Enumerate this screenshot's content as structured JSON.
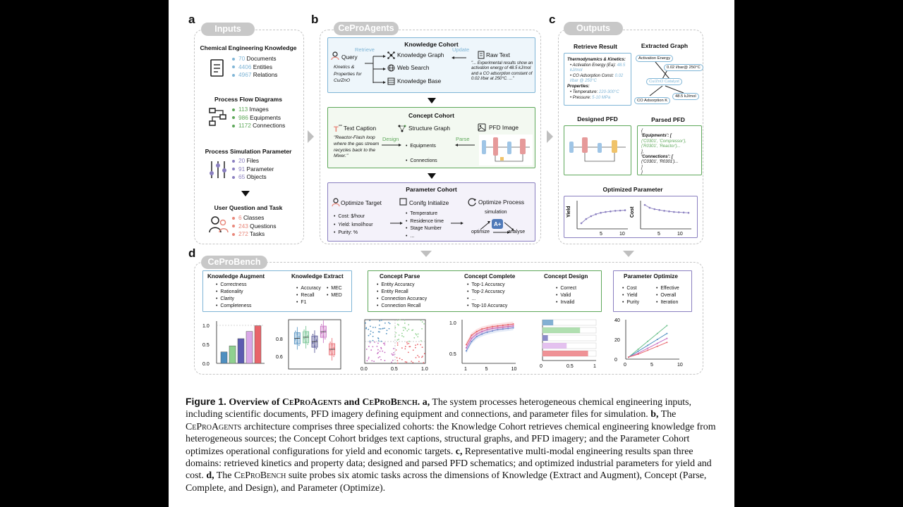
{
  "panel_letters": {
    "a": "a",
    "b": "b",
    "c": "c",
    "d": "d"
  },
  "pills": {
    "inputs": "Inputs",
    "ceproagents": "CeProAgents",
    "outputs": "Outputs",
    "ceprobench": "CeProBench"
  },
  "inputs": {
    "knowledge": {
      "title": "Chemical Engineering Knowledge",
      "lines": [
        {
          "num": "70",
          "text": "Documents"
        },
        {
          "num": "4406",
          "text": "Entities"
        },
        {
          "num": "4967",
          "text": "Relations"
        }
      ]
    },
    "pfd": {
      "title": "Process Flow Diagrams",
      "lines": [
        {
          "num": "113",
          "text": "Images"
        },
        {
          "num": "986",
          "text": "Equipments"
        },
        {
          "num": "1172",
          "text": "Connections"
        }
      ]
    },
    "sim": {
      "title": "Process Simulation Parameter",
      "lines": [
        {
          "num": "20",
          "text": "Files"
        },
        {
          "num": "91",
          "text": "Parameter"
        },
        {
          "num": "65",
          "text": "Objects"
        }
      ]
    },
    "user": {
      "title": "User Question and Task",
      "lines": [
        {
          "num": "6",
          "text": "Classes"
        },
        {
          "num": "243",
          "text": "Questions"
        },
        {
          "num": "272",
          "text": "Tasks"
        }
      ]
    }
  },
  "colors": {
    "blue": "#7fb5d6",
    "green": "#5ea85a",
    "purple": "#8a7fc0",
    "red": "#e8877a",
    "kc_border": "#7fb5d6",
    "kc_bg": "#eef6fb",
    "cc_border": "#5ea85a",
    "cc_bg": "#f3f9f1",
    "pc_border": "#8a7fc0",
    "pc_bg": "#f4f2fa"
  },
  "knowledge_cohort": {
    "title": "Knowledge Cohort",
    "query": "Query",
    "retrieve": "Retrieve",
    "update": "Update",
    "query_desc": "Kinetics & Properties for Cu/ZnO",
    "sources": [
      "Knowledge Graph",
      "Web Search",
      "Knowledge Base"
    ],
    "raw_text": "Raw Text",
    "raw_quote": "\"... Experimental results show an activation energy of 48.5 kJ/mol and a CO adsorption constant of 0.02 l/bar at 250°C. ...\""
  },
  "concept_cohort": {
    "title": "Concept Cohort",
    "text_caption": "Text Caption",
    "structure_graph": "Structure Graph",
    "pfd_image": "PFD Image",
    "caption_quote": "\"Reactor-Flash loop where the gas stream recycles back to the Mixer.\"",
    "design": "Design",
    "parse": "Parse",
    "items": [
      "Equipments",
      "Connections"
    ]
  },
  "parameter_cohort": {
    "title": "Parameter Cohort",
    "optimize_target": "Optimize Target",
    "config_init": "Conifg Initialize",
    "optimize_process": "Optimize Process",
    "targets": [
      "Cost: $/hour",
      "Yield: kmol/hour",
      "Purity: %"
    ],
    "params": [
      "Temperature",
      "Residence time",
      "Stage Number",
      "..."
    ],
    "simulation": "simulation",
    "optimize": "optimize",
    "analyse": "analyse"
  },
  "outputs": {
    "retrieve_title": "Retrieve Result",
    "thermo_title": "Thermodynamics & Kinetics:",
    "thermo_items": [
      {
        "k": "Activation Energy (Ea):",
        "v": "48.5 kJ/mol"
      },
      {
        "k": "CO Adsorption Const:",
        "v": "0.02 l/bar @ 250°C"
      }
    ],
    "prop_title": "Properties:",
    "prop_items": [
      {
        "k": "Temperature:",
        "v": "220-300°C"
      },
      {
        "k": "Pressure:",
        "v": "5-10 MPa"
      }
    ],
    "graph_title": "Extracted Graph",
    "graph_nodes": {
      "a": "Activation Energy",
      "b": "0.02 l/bar@ 250°C",
      "c": "Cu/ZnO Catalyst",
      "d": "48.5 kJ/mol",
      "e": "CO Adsorption K"
    },
    "designed_pfd": "Designed PFD",
    "parsed_pfd": "Parsed PFD",
    "parsed_lines": [
      "{",
      "'Equipments': [",
      "('C0301', 'Compressor'),",
      "('R0301', 'Reactor')...",
      "],",
      "'Connections': [",
      "('C0301', 'R0301')...",
      "]",
      "}"
    ],
    "opt_title": "Optimized Parameter",
    "yield_label": "Yield",
    "cost_label": "Cost",
    "ticks": [
      "5",
      "10"
    ]
  },
  "bench": {
    "knowledge_augment": {
      "title": "Knowledge Augment",
      "items": [
        "Correctness",
        "Rationality",
        "Clarity",
        "Completeness"
      ]
    },
    "knowledge_extract": {
      "title": "Knowledge Extract",
      "items_a": [
        "Accuracy",
        "Recall",
        "F1"
      ],
      "items_b": [
        "MEC",
        "MED"
      ]
    },
    "concept_parse": {
      "title": "Concept Parse",
      "items": [
        "Entity Accuracy",
        "Entity Recall",
        "Connection Accuracy",
        "Connection Recall"
      ]
    },
    "concept_complete": {
      "title": "Concept Complete",
      "items": [
        "Top-1 Accuracy",
        "Top-2 Accuracy",
        "...",
        "Top-10 Accuracy"
      ]
    },
    "concept_design": {
      "title": "Concept Design",
      "items": [
        "Correct",
        "Valid",
        "Invalid"
      ]
    },
    "param_optimize": {
      "title": "Parameter Optimize",
      "items_a": [
        "Cost",
        "Yield",
        "Purity"
      ],
      "items_b": [
        "Effective",
        "Overall",
        "Iteration"
      ]
    }
  },
  "chart_data": [
    {
      "type": "bar",
      "categories": [
        "1",
        "2",
        "3",
        "4",
        "5"
      ],
      "values": [
        0.3,
        0.46,
        0.65,
        0.84,
        0.99
      ],
      "yticks": [
        "0.0",
        "0.5",
        "1.0"
      ],
      "ylim": [
        0,
        1
      ]
    },
    {
      "type": "box",
      "series": [
        {
          "median": 0.83
        },
        {
          "median": 0.84
        },
        {
          "median": 0.8
        },
        {
          "median": 0.89
        },
        {
          "median": 0.73
        }
      ],
      "yticks": [
        "0.6",
        "0.8"
      ],
      "ylim": [
        0.55,
        1.0
      ]
    },
    {
      "type": "scatter",
      "xticks": [
        "0.0",
        "0.5",
        "1.0"
      ],
      "xlim": [
        0,
        1
      ]
    },
    {
      "type": "line",
      "x": [
        1,
        2,
        3,
        4,
        5,
        6,
        7,
        8,
        9,
        10
      ],
      "series": [
        {
          "values": [
            0.55,
            0.7,
            0.78,
            0.82,
            0.85,
            0.87,
            0.89,
            0.9,
            0.91,
            0.92
          ]
        },
        {
          "values": [
            0.6,
            0.75,
            0.82,
            0.86,
            0.89,
            0.91,
            0.92,
            0.93,
            0.94,
            0.95
          ]
        },
        {
          "values": [
            0.65,
            0.8,
            0.86,
            0.9,
            0.92,
            0.94,
            0.95,
            0.96,
            0.97,
            0.98
          ]
        }
      ],
      "yticks": [
        "0.5",
        "1.0"
      ],
      "xticks": [
        "1",
        "5",
        "10"
      ]
    },
    {
      "type": "bar",
      "orientation": "horizontal",
      "values": [
        0.2,
        0.7,
        0.1,
        0.45,
        0.85
      ],
      "xticks": [
        "0",
        "0.5",
        "1"
      ]
    },
    {
      "type": "line",
      "x": [
        0,
        2,
        4,
        6,
        8
      ],
      "series": [
        {
          "values": [
            2,
            10,
            18,
            26,
            34
          ]
        },
        {
          "values": [
            2,
            8,
            14,
            20,
            26
          ]
        },
        {
          "values": [
            2,
            6,
            11,
            16,
            21
          ]
        },
        {
          "values": [
            2,
            5,
            9,
            13,
            17
          ]
        }
      ],
      "yticks": [
        "0",
        "20",
        "40"
      ],
      "xticks": [
        "0",
        "5",
        "10"
      ]
    },
    {
      "type": "line",
      "title": "Yield",
      "x": [
        1,
        2,
        3,
        4,
        5,
        6,
        7,
        8,
        9,
        10
      ],
      "values": [
        0.2,
        0.35,
        0.45,
        0.52,
        0.57,
        0.6,
        0.62,
        0.64,
        0.65,
        0.66
      ],
      "xticks": [
        "5",
        "10"
      ]
    },
    {
      "type": "line",
      "title": "Cost",
      "x": [
        1,
        2,
        3,
        4,
        5,
        6,
        7,
        8,
        9,
        10
      ],
      "values": [
        0.85,
        0.75,
        0.7,
        0.67,
        0.64,
        0.62,
        0.6,
        0.59,
        0.58,
        0.57
      ],
      "xticks": [
        "5",
        "10"
      ]
    }
  ],
  "caption": {
    "fig": "Figure 1.",
    "title_pre": "Overview of ",
    "title_a": "CeProAgents",
    "title_and": " and ",
    "title_b": "CeProBench",
    "title_post": ".",
    "a_lbl": "a,",
    "a_txt": "The system processes heterogeneous chemical engineering inputs, including scientific documents, PFD imagery defining equipment and connections, and parameter files for simulation.",
    "b_lbl": "b,",
    "b_pre": "The ",
    "b_name": "CeProAgents",
    "b_txt": "architecture comprises three specialized cohorts: the Knowledge Cohort retrieves chemical engineering knowledge from heterogeneous sources; the Concept Cohort bridges text captions, structural graphs, and PFD imagery; and the Parameter Cohort optimizes operational configurations for yield and economic targets.",
    "c_lbl": "c,",
    "c_txt": "Representative multi-modal engineering results span three domains: retrieved kinetics and property data; designed and parsed PFD schematics; and optimized industrial parameters for yield and cost.",
    "d_lbl": "d,",
    "d_pre": "The ",
    "d_name": "CeProBench",
    "d_txt": "suite probes six atomic tasks across the dimensions of Knowledge (Extract and Augment), Concept (Parse, Complete, and Design), and Parameter (Optimize)."
  }
}
